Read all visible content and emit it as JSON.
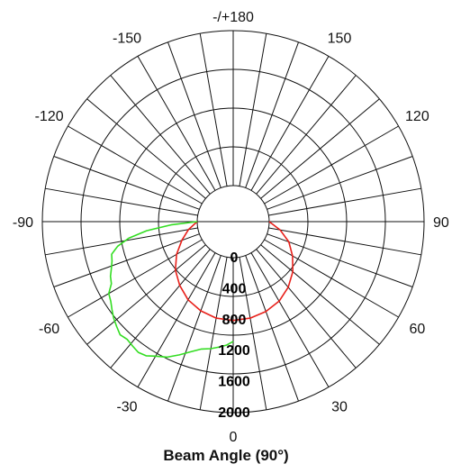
{
  "chart_data": {
    "type": "polar-line",
    "title": "Beam Angle (90°)",
    "angle_labels": [
      {
        "angle": 180,
        "label": "-/+180"
      },
      {
        "angle": 150,
        "label": "150"
      },
      {
        "angle": -150,
        "label": "-150"
      },
      {
        "angle": 120,
        "label": "120"
      },
      {
        "angle": -120,
        "label": "-120"
      },
      {
        "angle": 90,
        "label": "90"
      },
      {
        "angle": -90,
        "label": "-90"
      },
      {
        "angle": 60,
        "label": "60"
      },
      {
        "angle": -60,
        "label": "-60"
      },
      {
        "angle": 30,
        "label": "30"
      },
      {
        "angle": -30,
        "label": "-30"
      },
      {
        "angle": 0,
        "label": "0"
      }
    ],
    "radial_ticks": [
      "0",
      "400",
      "800",
      "1200",
      "1600",
      "2000"
    ],
    "r_range": [
      0,
      2000
    ],
    "angular_grid_step_deg": 10,
    "colors": {
      "red_series": "#e8201a",
      "green_series": "#33dd22",
      "grid": "#111111"
    },
    "series": [
      {
        "color_name": "red",
        "points": [
          [
            -90,
            0
          ],
          [
            -80,
            120
          ],
          [
            -70,
            240
          ],
          [
            -60,
            380
          ],
          [
            -50,
            510
          ],
          [
            -40,
            610
          ],
          [
            -30,
            700
          ],
          [
            -20,
            760
          ],
          [
            -10,
            800
          ],
          [
            0,
            810
          ],
          [
            10,
            800
          ],
          [
            20,
            770
          ],
          [
            30,
            720
          ],
          [
            40,
            640
          ],
          [
            50,
            540
          ],
          [
            60,
            420
          ],
          [
            70,
            300
          ],
          [
            80,
            150
          ],
          [
            90,
            0
          ]
        ]
      },
      {
        "color_name": "green",
        "points": [
          [
            0,
            1080
          ],
          [
            -3,
            1130
          ],
          [
            -6,
            1160
          ],
          [
            -10,
            1200
          ],
          [
            -14,
            1230
          ],
          [
            -18,
            1300
          ],
          [
            -22,
            1390
          ],
          [
            -26,
            1480
          ],
          [
            -30,
            1540
          ],
          [
            -33,
            1600
          ],
          [
            -36,
            1620
          ],
          [
            -39,
            1600
          ],
          [
            -42,
            1580
          ],
          [
            -45,
            1600
          ],
          [
            -48,
            1560
          ],
          [
            -51,
            1520
          ],
          [
            -54,
            1470
          ],
          [
            -57,
            1420
          ],
          [
            -60,
            1390
          ],
          [
            -63,
            1300
          ],
          [
            -66,
            1270
          ],
          [
            -69,
            1220
          ],
          [
            -72,
            1180
          ],
          [
            -75,
            1160
          ],
          [
            -78,
            1060
          ],
          [
            -81,
            900
          ],
          [
            -84,
            660
          ],
          [
            -87,
            340
          ],
          [
            -90,
            0
          ]
        ]
      }
    ]
  }
}
